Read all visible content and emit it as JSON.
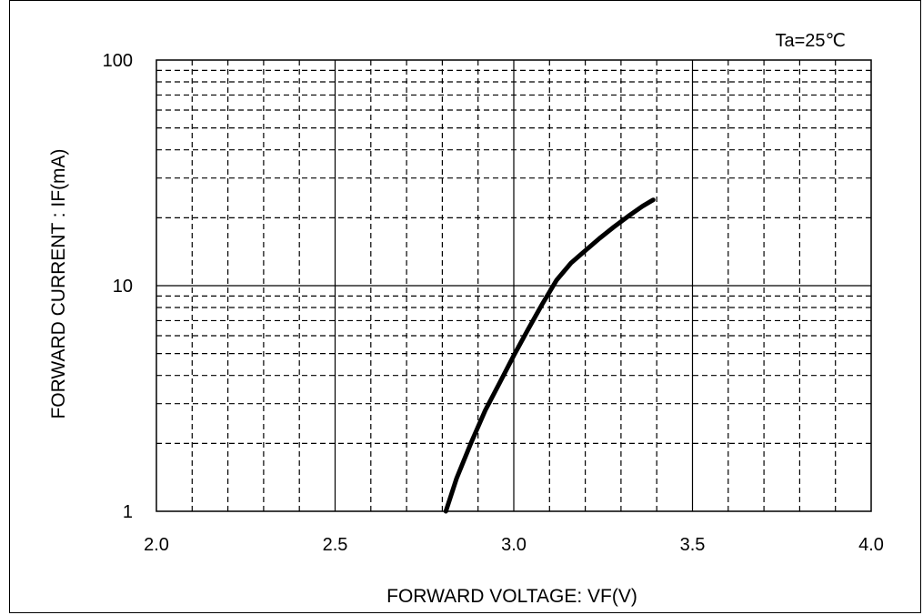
{
  "chart_data": {
    "type": "line",
    "annotation": "Ta=25℃",
    "xlabel": "FORWARD VOLTAGE: VF(V)",
    "ylabel": "FORWARD CURRENT : IF(mA)",
    "x_ticks": [
      "2.0",
      "2.5",
      "3.0",
      "3.5",
      "4.0"
    ],
    "y_ticks": [
      "1",
      "10",
      "100"
    ],
    "xlim": [
      2.0,
      4.0
    ],
    "ylim": [
      1,
      100
    ],
    "y_scale": "log",
    "grid": true,
    "series": [
      {
        "x": [
          2.81,
          2.84,
          2.88,
          2.92,
          2.96,
          3.0,
          3.04,
          3.08,
          3.12,
          3.16,
          3.2,
          3.24,
          3.28,
          3.32,
          3.36,
          3.39
        ],
        "y": [
          1.0,
          1.4,
          2.0,
          2.8,
          3.7,
          4.9,
          6.4,
          8.3,
          10.6,
          12.6,
          14.3,
          16.2,
          18.2,
          20.3,
          22.5,
          24.0
        ]
      }
    ],
    "colors": {
      "line": "#000000",
      "grid": "#000000",
      "background": "#ffffff"
    }
  }
}
